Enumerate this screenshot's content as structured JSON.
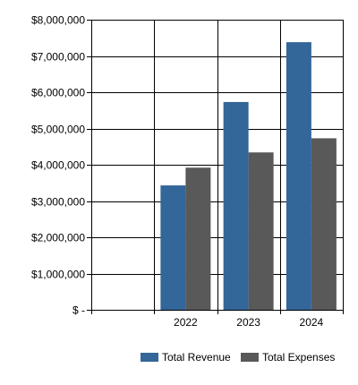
{
  "chart_data": {
    "type": "bar",
    "title": "",
    "xlabel": "",
    "ylabel": "",
    "categories": [
      "2022",
      "2023",
      "2024"
    ],
    "series": [
      {
        "name": "Total Revenue",
        "values": [
          3430000,
          5730000,
          7380000
        ],
        "color": "#336699"
      },
      {
        "name": "Total Expenses",
        "values": [
          3920000,
          4340000,
          4730000
        ],
        "color": "#595959"
      }
    ],
    "ylim": [
      0,
      8000000
    ],
    "y_ticks": [
      {
        "value": 0,
        "label": "$ -"
      },
      {
        "value": 1000000,
        "label": "$1,000,000"
      },
      {
        "value": 2000000,
        "label": "$2,000,000"
      },
      {
        "value": 3000000,
        "label": "$3,000,000"
      },
      {
        "value": 4000000,
        "label": "$4,000,000"
      },
      {
        "value": 5000000,
        "label": "$5,000,000"
      },
      {
        "value": 6000000,
        "label": "$6,000,000"
      },
      {
        "value": 7000000,
        "label": "$7,000,000"
      },
      {
        "value": 8000000,
        "label": "$8,000,000"
      }
    ],
    "grid": true,
    "legend_position": "bottom-right"
  }
}
